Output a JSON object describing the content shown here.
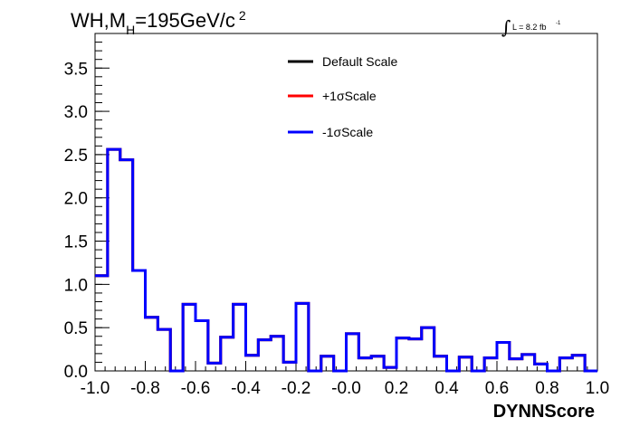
{
  "header": {
    "title_main": "WH,M",
    "title_sub": "H",
    "title_rest": "=195GeV/c",
    "title_sup": "2",
    "lumi_text": "L = 8.2 fb",
    "lumi_sup": "-1"
  },
  "colors": {
    "default": "#000000",
    "plus": "#ff0000",
    "minus": "#0000ff"
  },
  "chart_data": {
    "type": "line",
    "title": "WH,MH=195GeV/c 2",
    "xlabel": "DYNNScore",
    "ylabel": "",
    "xlim": [
      -1.0,
      1.0
    ],
    "ylim": [
      0.0,
      3.9
    ],
    "grid": false,
    "legend_position": "top-center",
    "x_ticks": [
      "-1.0",
      "-0.8",
      "-0.6",
      "-0.4",
      "-0.2",
      "-0.0",
      "0.2",
      "0.4",
      "0.6",
      "0.8",
      "1.0"
    ],
    "y_ticks": [
      "0.0",
      "0.5",
      "1.0",
      "1.5",
      "2.0",
      "2.5",
      "3.0",
      "3.5"
    ],
    "bin_edges": [
      -1.0,
      -0.95,
      -0.9,
      -0.85,
      -0.8,
      -0.75,
      -0.7,
      -0.65,
      -0.6,
      -0.55,
      -0.5,
      -0.45,
      -0.4,
      -0.35,
      -0.3,
      -0.25,
      -0.2,
      -0.15,
      -0.1,
      -0.05,
      0.0,
      0.05,
      0.1,
      0.15,
      0.2,
      0.25,
      0.3,
      0.35,
      0.4,
      0.45,
      0.5,
      0.55,
      0.6,
      0.65,
      0.7,
      0.75,
      0.8,
      0.85,
      0.9,
      0.95,
      1.0
    ],
    "series": [
      {
        "name": "Default Scale",
        "values": [
          1.1,
          2.56,
          2.44,
          1.16,
          0.62,
          0.48,
          0.0,
          0.77,
          0.58,
          0.09,
          0.39,
          0.77,
          0.18,
          0.36,
          0.4,
          0.1,
          0.78,
          0.0,
          0.17,
          0.0,
          0.43,
          0.15,
          0.17,
          0.04,
          0.38,
          0.37,
          0.5,
          0.17,
          0.0,
          0.16,
          0.0,
          0.15,
          0.33,
          0.14,
          0.19,
          0.08,
          0.0,
          0.15,
          0.18,
          0.0
        ]
      },
      {
        "name": "+1σScale",
        "values": [
          1.1,
          2.56,
          2.44,
          1.16,
          0.62,
          0.48,
          0.0,
          0.77,
          0.58,
          0.09,
          0.39,
          0.77,
          0.18,
          0.36,
          0.4,
          0.1,
          0.78,
          0.0,
          0.17,
          0.0,
          0.43,
          0.15,
          0.17,
          0.04,
          0.38,
          0.37,
          0.5,
          0.17,
          0.0,
          0.16,
          0.0,
          0.15,
          0.33,
          0.14,
          0.19,
          0.08,
          0.0,
          0.15,
          0.18,
          0.0
        ]
      },
      {
        "name": "-1σScale",
        "values": [
          1.1,
          2.56,
          2.44,
          1.16,
          0.62,
          0.48,
          0.0,
          0.77,
          0.58,
          0.09,
          0.39,
          0.77,
          0.18,
          0.36,
          0.4,
          0.1,
          0.78,
          0.0,
          0.17,
          0.0,
          0.43,
          0.15,
          0.17,
          0.04,
          0.38,
          0.37,
          0.5,
          0.17,
          0.0,
          0.16,
          0.0,
          0.15,
          0.33,
          0.14,
          0.19,
          0.08,
          0.0,
          0.15,
          0.18,
          0.0
        ]
      }
    ]
  }
}
